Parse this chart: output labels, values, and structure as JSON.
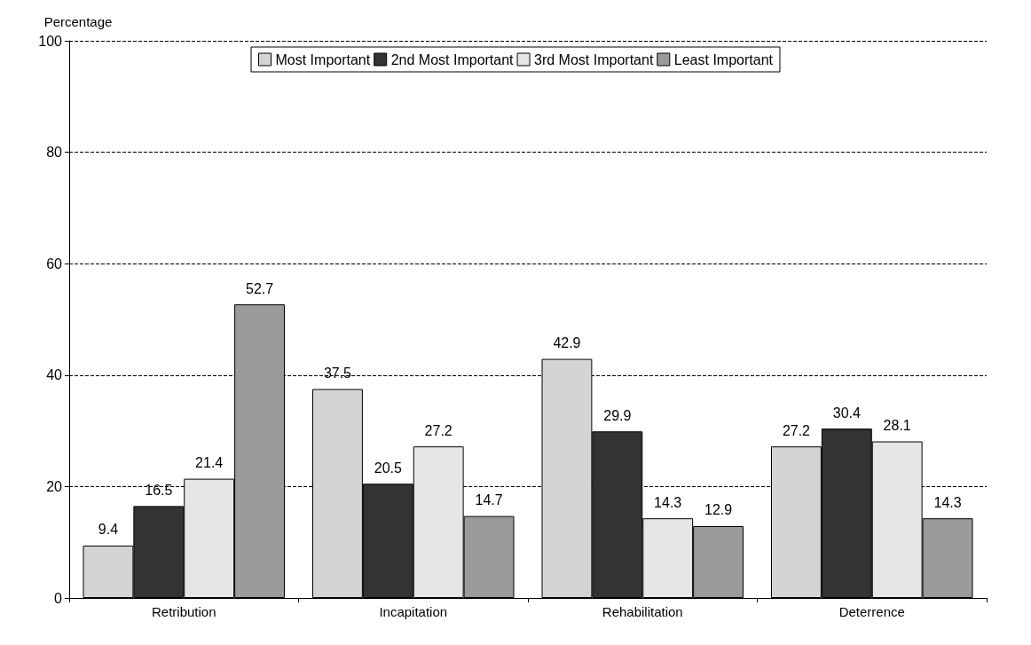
{
  "chart_data": {
    "type": "bar",
    "ylabel": "Percentage",
    "categories": [
      "Retribution",
      "Incapitation",
      "Rehabilitation",
      "Deterrence"
    ],
    "series": [
      {
        "name": "Most Important",
        "color": "#d4d4d4",
        "values": [
          9.4,
          37.5,
          42.9,
          27.2
        ]
      },
      {
        "name": "2nd Most Important",
        "color": "#333333",
        "values": [
          16.5,
          20.5,
          29.9,
          30.4
        ]
      },
      {
        "name": "3rd Most Important",
        "color": "#e6e6e6",
        "values": [
          21.4,
          27.2,
          14.3,
          28.1
        ]
      },
      {
        "name": "Least Important",
        "color": "#9a9a9a",
        "values": [
          52.7,
          14.7,
          12.9,
          14.3
        ]
      }
    ],
    "ylim": [
      0,
      100
    ],
    "yticks": [
      0,
      20,
      40,
      60,
      80,
      100
    ],
    "grid": "y",
    "legend": "top",
    "data_labels": true
  }
}
